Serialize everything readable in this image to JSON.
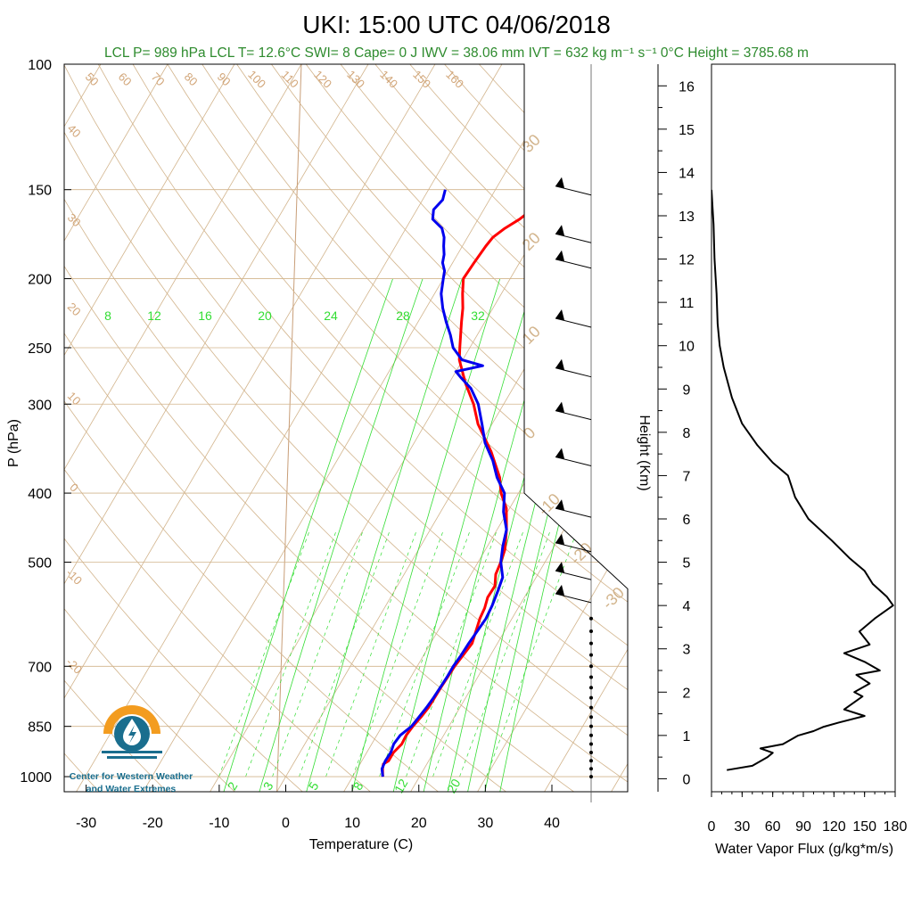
{
  "title": "UKI: 15:00 UTC 04/06/2018",
  "subtitle": "LCL P= 989 hPa  LCL T= 12.6°C  SWI= 8  Cape= 0 J  IWV = 38.06 mm  IVT = 632 kg m⁻¹ s⁻¹  0°C Height = 3785.68 m",
  "logo": {
    "line1": "Center for Western Weather",
    "line2": "and Water Extremes"
  },
  "colors": {
    "temperature": "#ff0000",
    "dewpoint": "#0000ee",
    "isotherm": "#d2b48c",
    "mixing_ratio": "#33dd33",
    "subtitle": "#2e8b2e",
    "logo_orange": "#f39c1f",
    "logo_teal": "#1a6e8e"
  },
  "chart_data": [
    {
      "type": "line",
      "subtype": "skew-T log-P sounding",
      "xlabel": "Temperature (C)",
      "ylabel": "P (hPa)",
      "x_ticks": [
        "-30",
        "-20",
        "-10",
        "0",
        "10",
        "20",
        "30",
        "40"
      ],
      "y_ticks": [
        "100",
        "150",
        "200",
        "250",
        "300",
        "400",
        "500",
        "700",
        "850",
        "1000"
      ],
      "y_scale": "log",
      "isotherm_labels": [
        "50",
        "60",
        "70",
        "80",
        "90",
        "100",
        "110",
        "120",
        "130",
        "140",
        "150",
        "160"
      ],
      "dry_adiabat_labels_left": [
        "40",
        "30",
        "20",
        "10",
        "0",
        "-10",
        "-20"
      ],
      "dry_adiabat_labels_right": [
        "30",
        "20",
        "10",
        "0",
        "-10",
        "-20",
        "-30"
      ],
      "mixing_ratio_labels_top": [
        "8",
        "12",
        "16",
        "20",
        "24",
        "28",
        "32"
      ],
      "mixing_ratio_labels_bottom": [
        "2",
        "3",
        "5",
        "8",
        "12",
        "20"
      ],
      "series": [
        {
          "name": "Temperature",
          "p": [
            1000,
            975,
            960,
            950,
            925,
            900,
            875,
            850,
            825,
            800,
            750,
            700,
            650,
            600,
            580,
            560,
            540,
            520,
            500,
            480,
            450,
            420,
            400,
            380,
            350,
            320,
            300,
            280,
            260,
            250,
            230,
            220,
            210,
            200,
            190,
            180,
            175,
            170,
            165,
            160,
            155,
            150
          ],
          "values": [
            14.5,
            13.8,
            13.5,
            14.0,
            14.0,
            14.5,
            14.4,
            14.6,
            15.0,
            15.3,
            15.4,
            15.6,
            16.2,
            15.2,
            15.0,
            14.5,
            14.6,
            13.7,
            13.4,
            12.9,
            11.4,
            9.5,
            7.4,
            5.8,
            2.3,
            -2.1,
            -4.5,
            -7.6,
            -10.5,
            -11.5,
            -13.5,
            -14.5,
            -15.8,
            -17.0,
            -16.8,
            -16.5,
            -16.2,
            -15.2,
            -13.8,
            -12.8,
            -11.8,
            -10.8
          ]
        },
        {
          "name": "Dewpoint",
          "p": [
            1000,
            975,
            950,
            925,
            900,
            875,
            850,
            825,
            800,
            775,
            750,
            725,
            700,
            675,
            650,
            625,
            600,
            575,
            550,
            525,
            500,
            475,
            450,
            425,
            400,
            380,
            360,
            340,
            320,
            300,
            285,
            275,
            270,
            265,
            260,
            250,
            240,
            230,
            220,
            210,
            200,
            195,
            190,
            185,
            180,
            175,
            170,
            165,
            160,
            155,
            150
          ],
          "values": [
            14.5,
            13.7,
            13.5,
            13.6,
            13.3,
            13.5,
            14.4,
            14.7,
            15.0,
            15.2,
            15.3,
            15.4,
            15.4,
            15.6,
            15.7,
            15.9,
            16.1,
            15.9,
            15.5,
            15.0,
            13.4,
            12.3,
            11.4,
            9.4,
            7.9,
            5.4,
            3.3,
            0.6,
            -1.5,
            -3.8,
            -6.3,
            -8.8,
            -10.0,
            -6.5,
            -10.1,
            -12.5,
            -14.0,
            -15.8,
            -17.5,
            -19.0,
            -20.0,
            -20.5,
            -21.5,
            -22.0,
            -22.8,
            -23.5,
            -24.6,
            -26.8,
            -27.5,
            -27.0,
            -27.5
          ]
        }
      ]
    },
    {
      "type": "line",
      "xlabel": "Water Vapor Flux (g/kg*m/s)",
      "ylabel": "Height (Km)",
      "x_ticks": [
        "0",
        "30",
        "60",
        "90",
        "120",
        "150",
        "180"
      ],
      "y_ticks": [
        "0",
        "1",
        "2",
        "3",
        "4",
        "5",
        "6",
        "7",
        "8",
        "9",
        "10",
        "11",
        "12",
        "13",
        "14",
        "15",
        "16"
      ],
      "xlim": [
        0,
        180
      ],
      "ylim": [
        -0.3,
        16.5
      ],
      "series": [
        {
          "name": "Water Vapor Flux",
          "x": [
            15,
            40,
            55,
            60,
            48,
            70,
            85,
            100,
            110,
            125,
            150,
            130,
            148,
            140,
            155,
            142,
            165,
            150,
            130,
            155,
            145,
            160,
            178,
            172,
            158,
            150,
            135,
            118,
            95,
            82,
            75,
            60,
            45,
            30,
            20,
            12,
            8,
            6,
            5,
            3,
            2,
            0
          ],
          "y": [
            0.2,
            0.3,
            0.5,
            0.6,
            0.7,
            0.8,
            1.0,
            1.1,
            1.2,
            1.3,
            1.45,
            1.6,
            1.9,
            2.0,
            2.2,
            2.4,
            2.5,
            2.7,
            2.9,
            3.1,
            3.4,
            3.7,
            4.0,
            4.2,
            4.5,
            4.8,
            5.1,
            5.5,
            6.0,
            6.5,
            7.0,
            7.3,
            7.7,
            8.2,
            8.8,
            9.5,
            10.0,
            10.5,
            11.2,
            12.0,
            12.8,
            13.6
          ]
        }
      ]
    }
  ]
}
